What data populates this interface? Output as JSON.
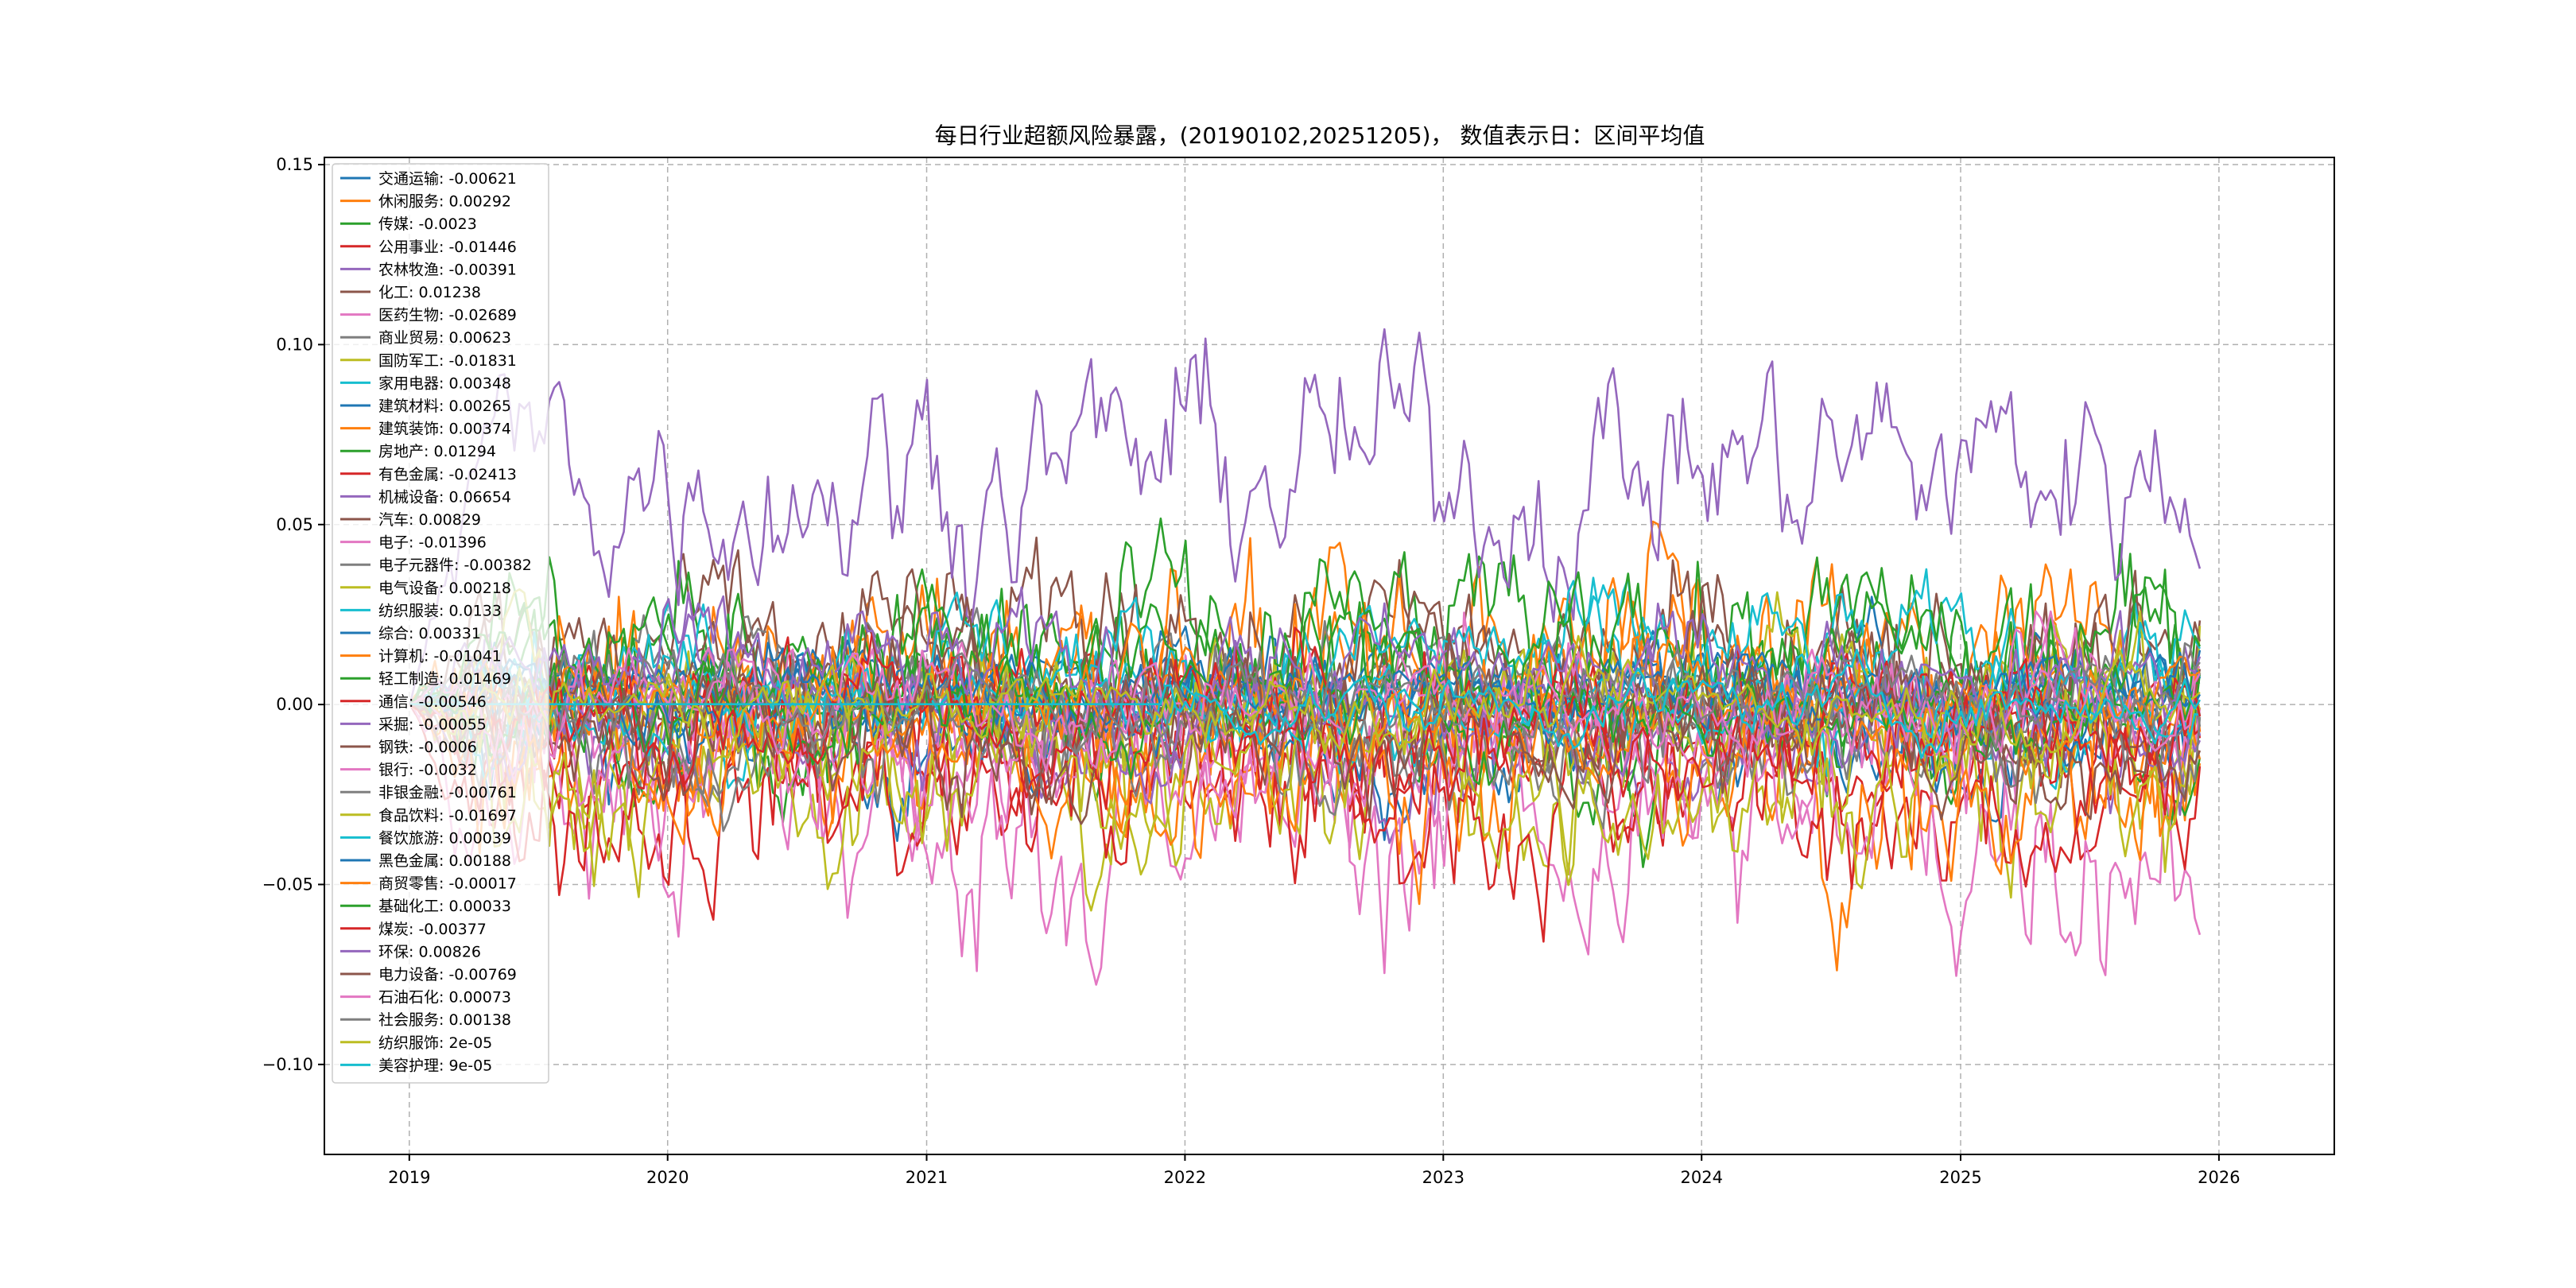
{
  "chart_data": {
    "type": "line",
    "title": "每日行业超额风险暴露，(20190102,20251205)， 数值表示日：区间平均值",
    "xlabel": "",
    "ylabel": "",
    "xlim": [
      "2018-09-03",
      "2026-06-13"
    ],
    "ylim": [
      -0.125,
      0.152
    ],
    "date_range": [
      "2019-01-02",
      "2025-12-05"
    ],
    "x_ticks": [
      "2019",
      "2020",
      "2021",
      "2022",
      "2023",
      "2024",
      "2025",
      "2026"
    ],
    "y_ticks": [
      "0.15",
      "0.10",
      "0.05",
      "0.00",
      "−0.05",
      "−0.10"
    ],
    "grid": true,
    "legend_position": "upper-left",
    "series": [
      {
        "name": "交通运输",
        "mean": -0.00621,
        "amp": 0.012,
        "color": "#1f77b4"
      },
      {
        "name": "休闲服务",
        "mean": 0.00292,
        "amp": 0.018,
        "color": "#ff7f0e"
      },
      {
        "name": "传媒",
        "mean": -0.0023,
        "amp": 0.014,
        "color": "#2ca02c"
      },
      {
        "name": "公用事业",
        "mean": -0.01446,
        "amp": 0.013,
        "color": "#d62728"
      },
      {
        "name": "农林牧渔",
        "mean": -0.00391,
        "amp": 0.01,
        "color": "#9467bd"
      },
      {
        "name": "化工",
        "mean": 0.01238,
        "amp": 0.014,
        "color": "#8c564b"
      },
      {
        "name": "医药生物",
        "mean": -0.02689,
        "amp": 0.024,
        "color": "#e377c2"
      },
      {
        "name": "商业贸易",
        "mean": 0.00623,
        "amp": 0.01,
        "color": "#7f7f7f"
      },
      {
        "name": "国防军工",
        "mean": -0.01831,
        "amp": 0.018,
        "color": "#bcbd22"
      },
      {
        "name": "家用电器",
        "mean": 0.00348,
        "amp": 0.01,
        "color": "#17becf"
      },
      {
        "name": "建筑材料",
        "mean": 0.00265,
        "amp": 0.009,
        "color": "#1f77b4"
      },
      {
        "name": "建筑装饰",
        "mean": 0.00374,
        "amp": 0.02,
        "color": "#ff7f0e"
      },
      {
        "name": "房地产",
        "mean": 0.01294,
        "amp": 0.016,
        "color": "#2ca02c"
      },
      {
        "name": "有色金属",
        "mean": -0.02413,
        "amp": 0.016,
        "color": "#d62728"
      },
      {
        "name": "机械设备",
        "mean": 0.06654,
        "amp": 0.018,
        "color": "#9467bd"
      },
      {
        "name": "汽车",
        "mean": 0.00829,
        "amp": 0.013,
        "color": "#8c564b"
      },
      {
        "name": "电子",
        "mean": -0.01396,
        "amp": 0.014,
        "color": "#e377c2"
      },
      {
        "name": "电子元器件",
        "mean": -0.00382,
        "amp": 0.009,
        "color": "#7f7f7f"
      },
      {
        "name": "电气设备",
        "mean": 0.00218,
        "amp": 0.012,
        "color": "#bcbd22"
      },
      {
        "name": "纺织服装",
        "mean": 0.0133,
        "amp": 0.01,
        "color": "#17becf"
      },
      {
        "name": "综合",
        "mean": 0.00331,
        "amp": 0.007,
        "color": "#1f77b4"
      },
      {
        "name": "计算机",
        "mean": -0.01041,
        "amp": 0.016,
        "color": "#ff7f0e"
      },
      {
        "name": "轻工制造",
        "mean": 0.01469,
        "amp": 0.012,
        "color": "#2ca02c"
      },
      {
        "name": "通信",
        "mean": -0.00546,
        "amp": 0.012,
        "color": "#d62728"
      },
      {
        "name": "采掘",
        "mean": -0.00055,
        "amp": 0.01,
        "color": "#9467bd"
      },
      {
        "name": "钢铁",
        "mean": -0.0006,
        "amp": 0.01,
        "color": "#8c564b"
      },
      {
        "name": "银行",
        "mean": -0.0032,
        "amp": 0.012,
        "color": "#e377c2"
      },
      {
        "name": "非银金融",
        "mean": -0.00761,
        "amp": 0.012,
        "color": "#7f7f7f"
      },
      {
        "name": "食品饮料",
        "mean": -0.01697,
        "amp": 0.014,
        "color": "#bcbd22"
      },
      {
        "name": "餐饮旅游",
        "mean": 0.00039,
        "amp": 0.006,
        "color": "#17becf"
      },
      {
        "name": "黑色金属",
        "mean": 0.00188,
        "amp": 0.006,
        "color": "#1f77b4"
      },
      {
        "name": "商贸零售",
        "mean": -0.00017,
        "amp": 0.008,
        "color": "#ff7f0e"
      },
      {
        "name": "基础化工",
        "mean": 0.00033,
        "amp": 0.008,
        "color": "#2ca02c"
      },
      {
        "name": "煤炭",
        "mean": -0.00377,
        "amp": 0.01,
        "color": "#d62728"
      },
      {
        "name": "环保",
        "mean": 0.00826,
        "amp": 0.01,
        "color": "#9467bd"
      },
      {
        "name": "电力设备",
        "mean": -0.00769,
        "amp": 0.012,
        "color": "#8c564b"
      },
      {
        "name": "石油石化",
        "mean": 0.00073,
        "amp": 0.008,
        "color": "#e377c2"
      },
      {
        "name": "社会服务",
        "mean": 0.00138,
        "amp": 0.007,
        "color": "#7f7f7f"
      },
      {
        "name": "纺织服饰",
        "mean": 2e-05,
        "amp": 0.006,
        "color": "#bcbd22"
      },
      {
        "name": "美容护理",
        "mean": 9e-05,
        "amp": 0.005,
        "color": "#17becf"
      }
    ],
    "legend_labels": [
      "交通运输: -0.00621",
      "休闲服务: 0.00292",
      "传媒: -0.0023",
      "公用事业: -0.01446",
      "农林牧渔: -0.00391",
      "化工: 0.01238",
      "医药生物: -0.02689",
      "商业贸易: 0.00623",
      "国防军工: -0.01831",
      "家用电器: 0.00348",
      "建筑材料: 0.00265",
      "建筑装饰: 0.00374",
      "房地产: 0.01294",
      "有色金属: -0.02413",
      "机械设备: 0.06654",
      "汽车: 0.00829",
      "电子: -0.01396",
      "电子元器件: -0.00382",
      "电气设备: 0.00218",
      "纺织服装: 0.0133",
      "综合: 0.00331",
      "计算机: -0.01041",
      "轻工制造: 0.01469",
      "通信: -0.00546",
      "采掘: -0.00055",
      "钢铁: -0.0006",
      "银行: -0.0032",
      "非银金融: -0.00761",
      "食品饮料: -0.01697",
      "餐饮旅游: 0.00039",
      "黑色金属: 0.00188",
      "商贸零售: -0.00017",
      "基础化工: 0.00033",
      "煤炭: -0.00377",
      "环保: 0.00826",
      "电力设备: -0.00769",
      "石油石化: 0.00073",
      "社会服务: 0.00138",
      "纺织服饰: 2e-05",
      "美容护理: 9e-05"
    ]
  }
}
